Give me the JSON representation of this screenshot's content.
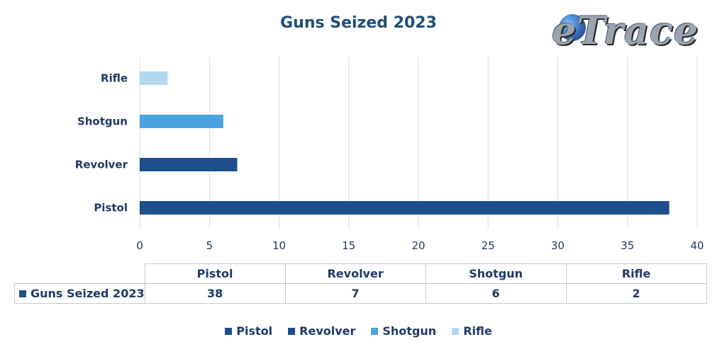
{
  "chart_data": {
    "type": "bar",
    "orientation": "horizontal",
    "title": "Guns Seized 2023",
    "categories": [
      "Pistol",
      "Revolver",
      "Shotgun",
      "Rifle"
    ],
    "series": [
      {
        "name": "Guns Seized 2023",
        "values": [
          38,
          7,
          6,
          2
        ]
      }
    ],
    "bar_colors": [
      "#1f4e8c",
      "#1f4e8c",
      "#4aa3df",
      "#b3d8ee"
    ],
    "xlim": [
      0,
      40
    ],
    "x_ticks": [
      0,
      5,
      10,
      15,
      20,
      25,
      30,
      35,
      40
    ],
    "grid": "vertical",
    "legend": "bottom",
    "legend_entries": [
      "Pistol",
      "Revolver",
      "Shotgun",
      "Rifle"
    ],
    "data_table": true
  },
  "logo_text": "eTrace"
}
